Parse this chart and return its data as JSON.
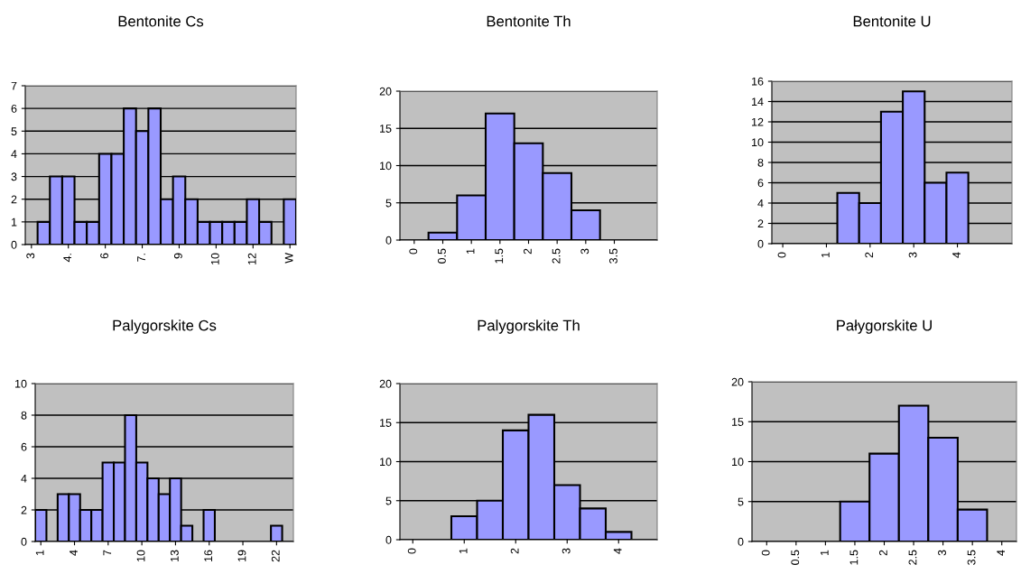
{
  "chart_data": [
    {
      "type": "bar",
      "title": "Bentonite Cs",
      "categories": [
        "3",
        null,
        null,
        "4.",
        null,
        null,
        "6",
        null,
        null,
        "7.",
        null,
        null,
        "9",
        null,
        null,
        "10",
        null,
        null,
        "12",
        null,
        null,
        "W"
      ],
      "values": [
        0,
        1,
        3,
        3,
        1,
        1,
        4,
        4,
        6,
        5,
        6,
        2,
        3,
        2,
        1,
        1,
        1,
        1,
        2,
        1,
        0,
        2
      ],
      "color": "#9999ff",
      "ylim": [
        0,
        7
      ],
      "yticks": [
        0,
        1,
        2,
        3,
        4,
        5,
        6,
        7
      ],
      "grid": "y"
    },
    {
      "type": "bar",
      "title": "Bentonite Th",
      "categories": [
        "0",
        "0.5",
        "1",
        "1.5",
        "2",
        "2.5",
        "3",
        "3.5",
        null
      ],
      "values": [
        0,
        1,
        6,
        17,
        13,
        9,
        4,
        0,
        0
      ],
      "color": "#9999ff",
      "ylim": [
        0,
        20
      ],
      "yticks": [
        0,
        5,
        10,
        15,
        20
      ],
      "grid": "y"
    },
    {
      "type": "bar",
      "title": "Bentonite U",
      "categories": [
        "0",
        null,
        "1",
        null,
        "2",
        null,
        "3",
        null,
        "4",
        null,
        null
      ],
      "values": [
        0,
        0,
        0,
        5,
        4,
        13,
        15,
        6,
        7,
        0,
        0
      ],
      "color": "#9999ff",
      "ylim": [
        0,
        16
      ],
      "yticks": [
        0,
        2,
        4,
        6,
        8,
        10,
        12,
        14,
        16
      ],
      "grid": "y"
    },
    {
      "type": "bar",
      "title": "Palygorskite Cs",
      "categories": [
        "1",
        null,
        null,
        "4",
        null,
        null,
        "7",
        null,
        null,
        "10",
        null,
        null,
        "13",
        null,
        null,
        "16",
        null,
        null,
        "19",
        null,
        null,
        "22",
        null
      ],
      "values": [
        2,
        0,
        3,
        3,
        2,
        2,
        5,
        5,
        8,
        5,
        4,
        3,
        4,
        1,
        0,
        2,
        0,
        0,
        0,
        0,
        0,
        1,
        0
      ],
      "color": "#9999ff",
      "ylim": [
        0,
        10
      ],
      "yticks": [
        0,
        2,
        4,
        6,
        8,
        10
      ],
      "grid": "y"
    },
    {
      "type": "bar",
      "title": "Palygorskite Th",
      "categories": [
        "0",
        null,
        "1",
        null,
        "2",
        null,
        "3",
        null,
        "4",
        null
      ],
      "values": [
        0,
        0,
        3,
        5,
        14,
        16,
        7,
        4,
        1,
        0
      ],
      "color": "#9999ff",
      "ylim": [
        0,
        20
      ],
      "yticks": [
        0,
        5,
        10,
        15,
        20
      ],
      "grid": "y"
    },
    {
      "type": "bar",
      "title": "Pałygorskite U",
      "categories": [
        "0",
        "0.5",
        "1",
        "1.5",
        "2",
        "2.5",
        "3",
        "3.5",
        "4"
      ],
      "values": [
        0,
        0,
        0,
        5,
        11,
        17,
        13,
        4,
        0
      ],
      "color": "#9999ff",
      "ylim": [
        0,
        20
      ],
      "yticks": [
        0,
        5,
        10,
        15,
        20
      ],
      "grid": "y"
    }
  ]
}
